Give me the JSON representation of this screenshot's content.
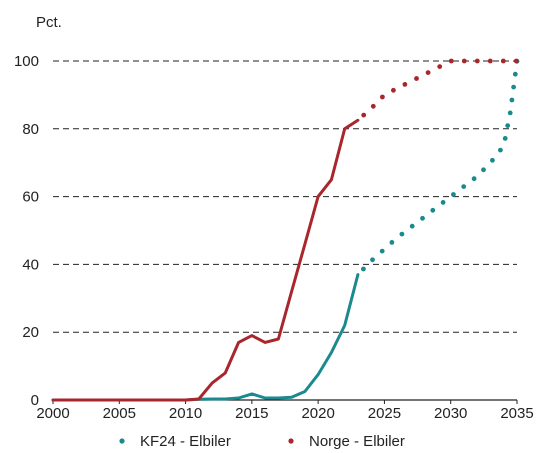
{
  "chart_data": {
    "type": "line",
    "ylabel": "Pct.",
    "xlim": [
      2000,
      2035
    ],
    "ylim": [
      0,
      100
    ],
    "x_ticks": [
      "2000",
      "2005",
      "2010",
      "2015",
      "2020",
      "2025",
      "2030",
      "2035"
    ],
    "y_ticks": [
      "0",
      "20",
      "40",
      "60",
      "80",
      "100"
    ],
    "grid": "horizontal-dashed",
    "legend_position": "bottom",
    "series": [
      {
        "name": "KF24 - Elbiler",
        "color": "#1b8a8f",
        "history": {
          "x": [
            2000,
            2001,
            2002,
            2003,
            2004,
            2005,
            2006,
            2007,
            2008,
            2009,
            2010,
            2011,
            2012,
            2013,
            2014,
            2015,
            2016,
            2017,
            2018,
            2019,
            2020,
            2021,
            2022,
            2023
          ],
          "y": [
            0,
            0,
            0,
            0,
            0,
            0,
            0,
            0,
            0,
            0,
            0,
            0.2,
            0.3,
            0.3,
            0.6,
            1.8,
            0.6,
            0.6,
            0.8,
            2.5,
            7.5,
            14,
            22,
            37
          ]
        },
        "projection": {
          "x": [
            2023,
            2024,
            2025,
            2026,
            2027,
            2028,
            2029,
            2030,
            2031,
            2032,
            2033,
            2034,
            2034.5,
            2035
          ],
          "y": [
            37,
            41,
            44.5,
            48,
            51,
            54,
            57,
            60,
            63,
            66,
            70,
            75,
            85,
            100
          ]
        }
      },
      {
        "name": "Norge - Elbiler",
        "color": "#a8262c",
        "history": {
          "x": [
            2000,
            2001,
            2002,
            2003,
            2004,
            2005,
            2006,
            2007,
            2008,
            2009,
            2010,
            2011,
            2012,
            2013,
            2014,
            2015,
            2016,
            2017,
            2018,
            2019,
            2020,
            2021,
            2022,
            2023
          ],
          "y": [
            0,
            0,
            0,
            0,
            0,
            0,
            0,
            0,
            0,
            0,
            0,
            0.3,
            5,
            8,
            17,
            19,
            17,
            18,
            32,
            46,
            60,
            65,
            80,
            82.5
          ]
        },
        "projection": {
          "x": [
            2023,
            2024,
            2025,
            2026,
            2027,
            2028,
            2029,
            2030,
            2031,
            2032,
            2033,
            2034,
            2035
          ],
          "y": [
            82.5,
            86,
            90,
            92,
            94,
            96,
            98,
            100,
            100,
            100,
            100,
            100,
            100
          ]
        }
      }
    ]
  }
}
